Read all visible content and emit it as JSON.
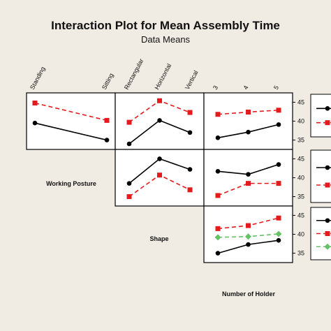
{
  "chart_data": {
    "type": "line",
    "title": "Interaction Plot for Mean Assembly Time",
    "subtitle": "Data Means",
    "factors": [
      {
        "name": "Working Posture",
        "levels": [
          "Standing",
          "Sitting"
        ]
      },
      {
        "name": "Shape",
        "levels": [
          "Rectangular",
          "Horizontal",
          "Vertical"
        ]
      },
      {
        "name": "Number of Holder",
        "levels": [
          "3",
          "4",
          "5"
        ]
      }
    ],
    "ylim": [
      34,
      46
    ],
    "yticks": [
      35,
      40,
      45
    ],
    "panels": [
      {
        "row": 0,
        "col": 0,
        "x_factor": "Working Posture",
        "trace_factor": "Working Posture",
        "series": [
          {
            "color": "#e41a1c",
            "dashed": true,
            "marker": "square",
            "values": [
              44.8,
              40.2
            ]
          },
          {
            "color": "#000000",
            "dashed": false,
            "marker": "circle",
            "values": [
              39.5,
              35.0
            ]
          }
        ]
      },
      {
        "row": 0,
        "col": 1,
        "x_factor": "Shape",
        "trace_factor": "Working Posture",
        "series": [
          {
            "color": "#e41a1c",
            "dashed": true,
            "marker": "square",
            "values": [
              39.7,
              45.4,
              42.3
            ]
          },
          {
            "color": "#000000",
            "dashed": false,
            "marker": "circle",
            "values": [
              34.0,
              40.2,
              37.0
            ]
          }
        ]
      },
      {
        "row": 0,
        "col": 2,
        "x_factor": "Number of Holder",
        "trace_factor": "Working Posture",
        "series": [
          {
            "color": "#e41a1c",
            "dashed": true,
            "marker": "square",
            "values": [
              41.8,
              42.4,
              42.9
            ]
          },
          {
            "color": "#000000",
            "dashed": false,
            "marker": "circle",
            "values": [
              35.6,
              37.1,
              39.1
            ]
          }
        ]
      },
      {
        "row": 1,
        "col": 1,
        "x_factor": "Shape",
        "trace_factor": "Shape",
        "series": [
          {
            "color": "#000000",
            "dashed": false,
            "marker": "circle",
            "values": [
              38.5,
              45.0,
              42.2
            ]
          },
          {
            "color": "#e41a1c",
            "dashed": true,
            "marker": "square",
            "values": [
              35.0,
              40.7,
              36.8
            ]
          }
        ]
      },
      {
        "row": 1,
        "col": 2,
        "x_factor": "Number of Holder",
        "trace_factor": "Shape",
        "series": [
          {
            "color": "#000000",
            "dashed": false,
            "marker": "circle",
            "values": [
              41.7,
              40.9,
              43.5
            ]
          },
          {
            "color": "#e41a1c",
            "dashed": true,
            "marker": "square",
            "values": [
              35.3,
              38.5,
              38.5
            ]
          }
        ]
      },
      {
        "row": 2,
        "col": 2,
        "x_factor": "Number of Holder",
        "trace_factor": "Number of Holder",
        "series": [
          {
            "color": "#e41a1c",
            "dashed": true,
            "marker": "square",
            "values": [
              41.5,
              42.3,
              44.3
            ]
          },
          {
            "color": "#66c266",
            "dashed": true,
            "marker": "diamond",
            "values": [
              39.2,
              39.4,
              40.1
            ]
          },
          {
            "color": "#000000",
            "dashed": false,
            "marker": "circle",
            "values": [
              35.0,
              37.3,
              38.4
            ]
          }
        ]
      }
    ],
    "legends": [
      {
        "row": 0,
        "items": [
          {
            "color": "#000000",
            "dashed": false,
            "marker": "circle"
          },
          {
            "color": "#e41a1c",
            "dashed": true,
            "marker": "square"
          }
        ]
      },
      {
        "row": 1,
        "items": [
          {
            "color": "#000000",
            "dashed": false,
            "marker": "circle"
          },
          {
            "color": "#e41a1c",
            "dashed": true,
            "marker": "square"
          }
        ]
      },
      {
        "row": 2,
        "items": [
          {
            "color": "#000000",
            "dashed": false,
            "marker": "circle"
          },
          {
            "color": "#e41a1c",
            "dashed": true,
            "marker": "square"
          },
          {
            "color": "#66c266",
            "dashed": true,
            "marker": "diamond"
          }
        ]
      }
    ],
    "grid": false,
    "legend_position": "right"
  }
}
